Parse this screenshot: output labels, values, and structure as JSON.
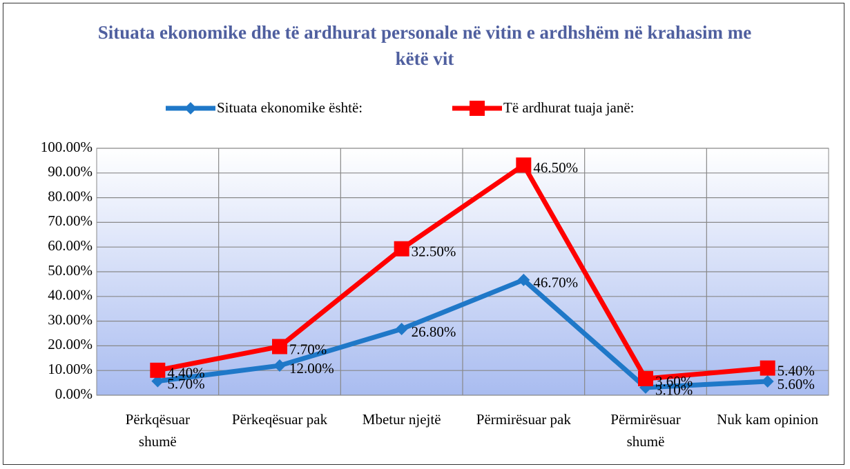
{
  "chart_data": {
    "type": "line",
    "stacked": true,
    "title": "Situata ekonomike dhe të ardhurat personale në vitin e ardhshëm në krahasim me këtë vit",
    "categories": [
      "Përkqësuar shumë",
      "Përkeqësuar pak",
      "Mbetur njejtë",
      "Përmirësuar pak",
      "Përmirësuar shumë",
      "Nuk kam opinion"
    ],
    "series": [
      {
        "name": "Situata ekonomike është:",
        "color": "#1f78c8",
        "marker": "diamond",
        "values": [
          5.7,
          12.0,
          26.8,
          46.7,
          3.1,
          5.6
        ],
        "value_labels": [
          "5.70%",
          "12.00%",
          "26.80%",
          "46.70%",
          "3.10%",
          "5.60%"
        ]
      },
      {
        "name": "Të ardhurat tuaja janë:",
        "color": "#ff0000",
        "marker": "square",
        "values": [
          4.4,
          7.7,
          32.5,
          46.5,
          3.6,
          5.4
        ],
        "value_labels": [
          "4.40%",
          "7.70%",
          "32.50%",
          "46.50%",
          "3.60%",
          "5.40%"
        ]
      }
    ],
    "ylim": [
      0,
      100
    ],
    "yticks": [
      {
        "value": 0,
        "label": "0.00%"
      },
      {
        "value": 10,
        "label": "10.00%"
      },
      {
        "value": 20,
        "label": "20.00%"
      },
      {
        "value": 30,
        "label": "30.00%"
      },
      {
        "value": 40,
        "label": "40.00%"
      },
      {
        "value": 50,
        "label": "50.00%"
      },
      {
        "value": 60,
        "label": "60.00%"
      },
      {
        "value": 70,
        "label": "70.00%"
      },
      {
        "value": 80,
        "label": "80.00%"
      },
      {
        "value": 90,
        "label": "90.00%"
      },
      {
        "value": 100,
        "label": "100.00%"
      }
    ],
    "grid": true,
    "legend": "top"
  }
}
